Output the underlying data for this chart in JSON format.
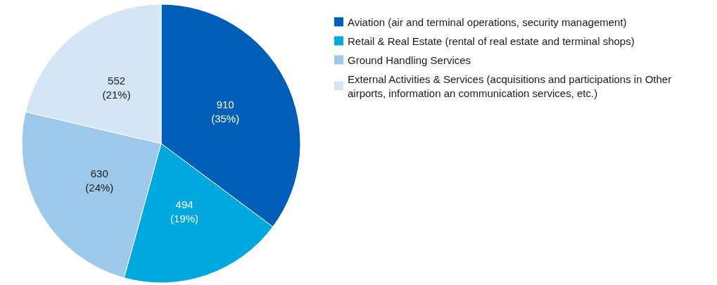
{
  "chart_data": {
    "type": "pie",
    "categories": [
      "Aviation (air and terminal operations, security management)",
      "Retail & Real Estate (rental of real estate and terminal shops)",
      "Ground Handling Services",
      "External Activities & Services (acquisitions and participations in Other airports, information an communication services, etc.)"
    ],
    "values": [
      910,
      494,
      630,
      552
    ],
    "value_labels": [
      "910\n(35%)",
      "494\n(19%)",
      "630\n(24%)",
      "552\n(21%)"
    ],
    "colors": [
      "#005eb8",
      "#00a8e0",
      "#9dc8ea",
      "#d4e6f6"
    ],
    "legend": "top right"
  }
}
